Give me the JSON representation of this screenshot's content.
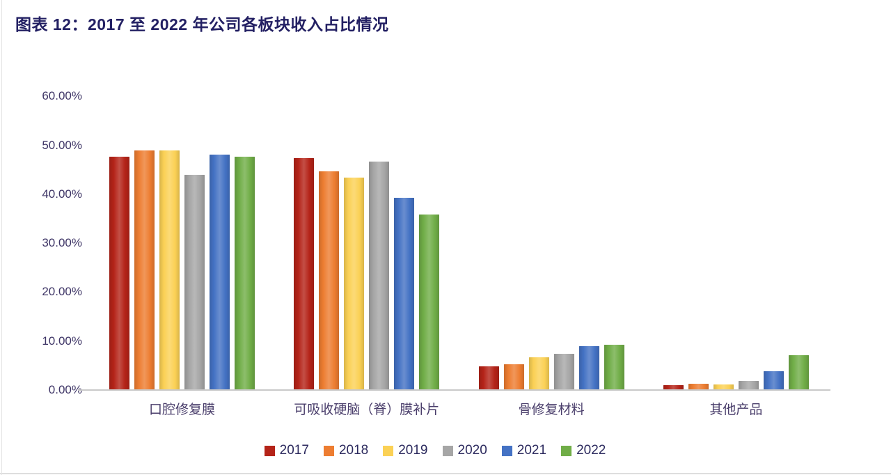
{
  "title": "图表 12：2017 至 2022 年公司各板块收入占比情况",
  "chart_data": {
    "type": "bar",
    "title": "图表 12：2017 至 2022 年公司各板块收入占比情况",
    "categories": [
      "口腔修复膜",
      "可吸收硬脑（脊）膜补片",
      "骨修复材料",
      "其他产品"
    ],
    "series": [
      {
        "name": "2017",
        "color": "#B42318",
        "values": [
          47.6,
          47.4,
          4.8,
          1.0
        ]
      },
      {
        "name": "2018",
        "color": "#ED7D31",
        "values": [
          48.9,
          44.6,
          5.2,
          1.3
        ]
      },
      {
        "name": "2019",
        "color": "#FBD155",
        "values": [
          49.0,
          43.4,
          6.7,
          1.1
        ]
      },
      {
        "name": "2020",
        "color": "#A6A6A6",
        "values": [
          44.0,
          46.7,
          7.4,
          1.8
        ]
      },
      {
        "name": "2021",
        "color": "#4472C4",
        "values": [
          48.1,
          39.3,
          9.0,
          3.8
        ]
      },
      {
        "name": "2022",
        "color": "#70AD47",
        "values": [
          47.7,
          35.9,
          9.2,
          7.1
        ]
      }
    ],
    "y_ticks": [
      "0.00%",
      "10.00%",
      "20.00%",
      "30.00%",
      "40.00%",
      "50.00%",
      "60.00%"
    ],
    "ylim": [
      0,
      60
    ],
    "xlabel": "",
    "ylabel": "",
    "value_unit": "%",
    "grid": false,
    "legend_position": "bottom"
  }
}
